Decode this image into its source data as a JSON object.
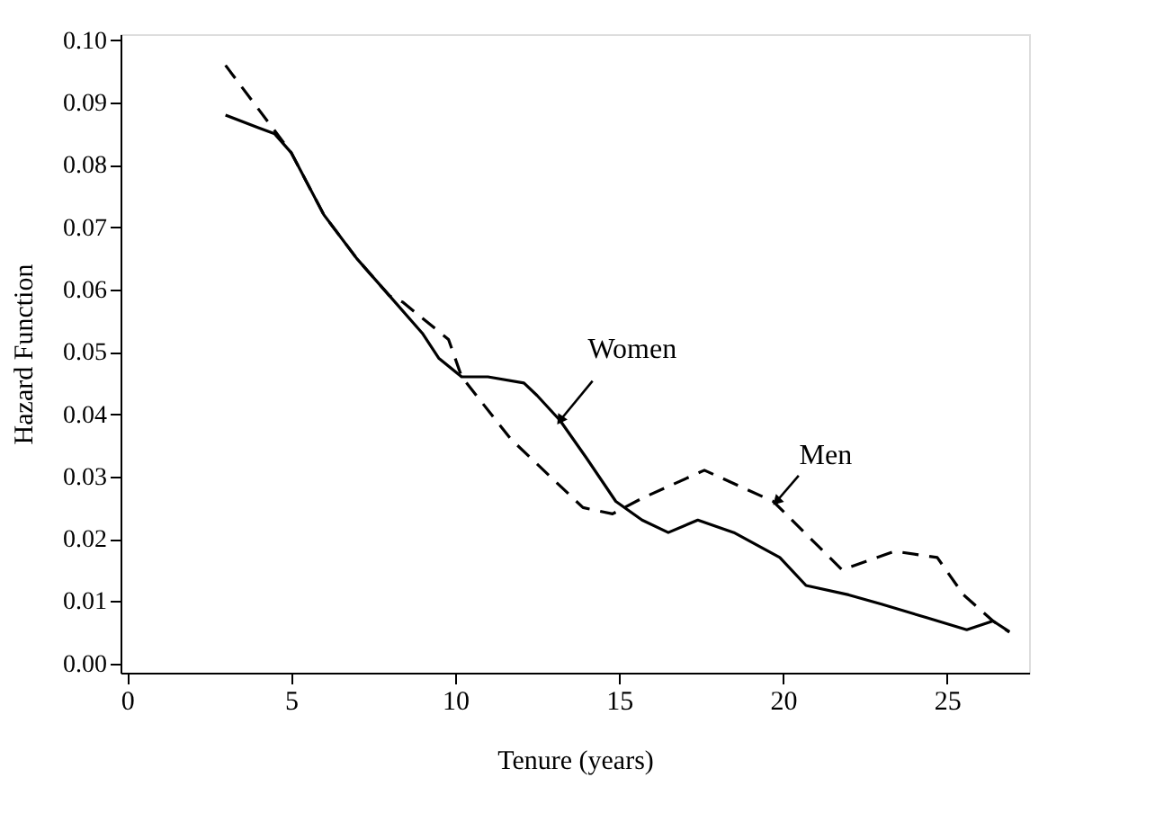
{
  "chart_data": {
    "type": "line",
    "xlabel": "Tenure (years)",
    "ylabel": "Hazard Function",
    "xlim": [
      -0.2,
      27.5
    ],
    "ylim": [
      -0.0015,
      0.101
    ],
    "xticks": [
      0,
      5,
      10,
      15,
      20,
      25
    ],
    "yticks": [
      {
        "value": 0,
        "label": "0.00"
      },
      {
        "value": 0.01,
        "label": "0.01"
      },
      {
        "value": 0.02,
        "label": "0.02"
      },
      {
        "value": 0.03,
        "label": "0.03"
      },
      {
        "value": 0.04,
        "label": "0.04"
      },
      {
        "value": 0.05,
        "label": "0.05"
      },
      {
        "value": 0.06,
        "label": "0.06"
      },
      {
        "value": 0.07,
        "label": "0.07"
      },
      {
        "value": 0.08,
        "label": "0.08"
      },
      {
        "value": 0.09,
        "label": "0.09"
      },
      {
        "value": 0.1,
        "label": "0.10"
      }
    ],
    "grid": false,
    "legend": false,
    "marker": "none",
    "series": [
      {
        "color": "#000000",
        "line_style": "solid",
        "x": [
          3,
          4,
          4.5,
          5,
          6,
          7,
          8,
          9,
          9.5,
          10.2,
          11,
          12.1,
          12.5,
          13.2,
          14,
          14.9,
          15.7,
          16.5,
          17.4,
          18.5,
          19.9,
          20.7,
          22,
          23,
          24.4,
          25.6,
          26.4,
          26.9
        ],
        "values": [
          0.088,
          0.086,
          0.085,
          0.082,
          0.072,
          0.065,
          0.059,
          0.053,
          0.049,
          0.046,
          0.046,
          0.045,
          0.043,
          0.039,
          0.033,
          0.026,
          0.023,
          0.021,
          0.023,
          0.021,
          0.017,
          0.0125,
          0.011,
          0.0095,
          0.0073,
          0.0054,
          0.0068,
          0.0051
        ]
      },
      {
        "color": "#000000",
        "line_style": "dashed",
        "x": [
          3,
          4,
          5,
          6,
          7,
          8,
          8.4,
          9.8,
          10.2,
          11.7,
          13.9,
          14.8,
          15.7,
          17.6,
          19.7,
          21.8,
          23.4,
          24.7,
          25.5,
          26.4,
          26.9
        ],
        "values": [
          0.096,
          0.089,
          0.082,
          0.072,
          0.065,
          0.059,
          0.058,
          0.052,
          0.046,
          0.036,
          0.025,
          0.024,
          0.0265,
          0.031,
          0.026,
          0.015,
          0.018,
          0.017,
          0.011,
          0.0068,
          0.005
        ]
      }
    ],
    "annotations": [
      {
        "text": "Women",
        "x": 13.2,
        "y": 0.039
      },
      {
        "text": "Men",
        "x": 19.8,
        "y": 0.026
      }
    ]
  }
}
